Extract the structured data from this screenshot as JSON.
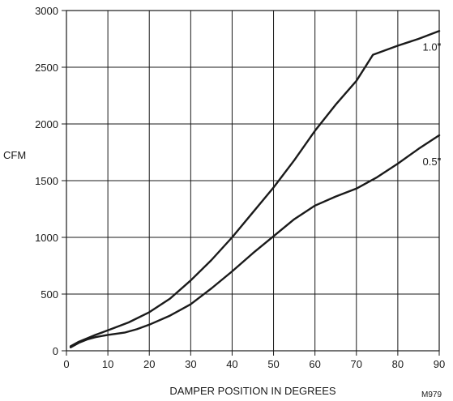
{
  "chart_data": {
    "type": "line",
    "title": "",
    "xlabel": "DAMPER POSITION IN DEGREES",
    "ylabel": "CFM",
    "xlim": [
      0,
      90
    ],
    "ylim": [
      0,
      3000
    ],
    "x_ticks": [
      0,
      10,
      20,
      30,
      40,
      50,
      60,
      70,
      80,
      90
    ],
    "y_ticks": [
      0,
      500,
      1000,
      1500,
      2000,
      2500,
      3000
    ],
    "grid": true,
    "figure_id": "M979",
    "series": [
      {
        "name": "1.0\"",
        "x": [
          1,
          3,
          5,
          7,
          10,
          15,
          20,
          25,
          30,
          35,
          40,
          45,
          50,
          55,
          60,
          65,
          70,
          74,
          80,
          85,
          90
        ],
        "y": [
          40,
          80,
          110,
          140,
          180,
          250,
          340,
          460,
          620,
          800,
          1000,
          1220,
          1440,
          1680,
          1940,
          2170,
          2380,
          2610,
          2690,
          2750,
          2820
        ]
      },
      {
        "name": "0.5\"",
        "x": [
          1,
          3,
          5,
          7,
          10,
          14,
          17,
          20,
          25,
          30,
          35,
          40,
          45,
          50,
          55,
          60,
          65,
          70,
          75,
          80,
          85,
          90
        ],
        "y": [
          30,
          70,
          100,
          120,
          140,
          160,
          190,
          230,
          310,
          410,
          550,
          700,
          860,
          1010,
          1160,
          1280,
          1360,
          1430,
          1530,
          1650,
          1780,
          1900
        ]
      }
    ]
  }
}
